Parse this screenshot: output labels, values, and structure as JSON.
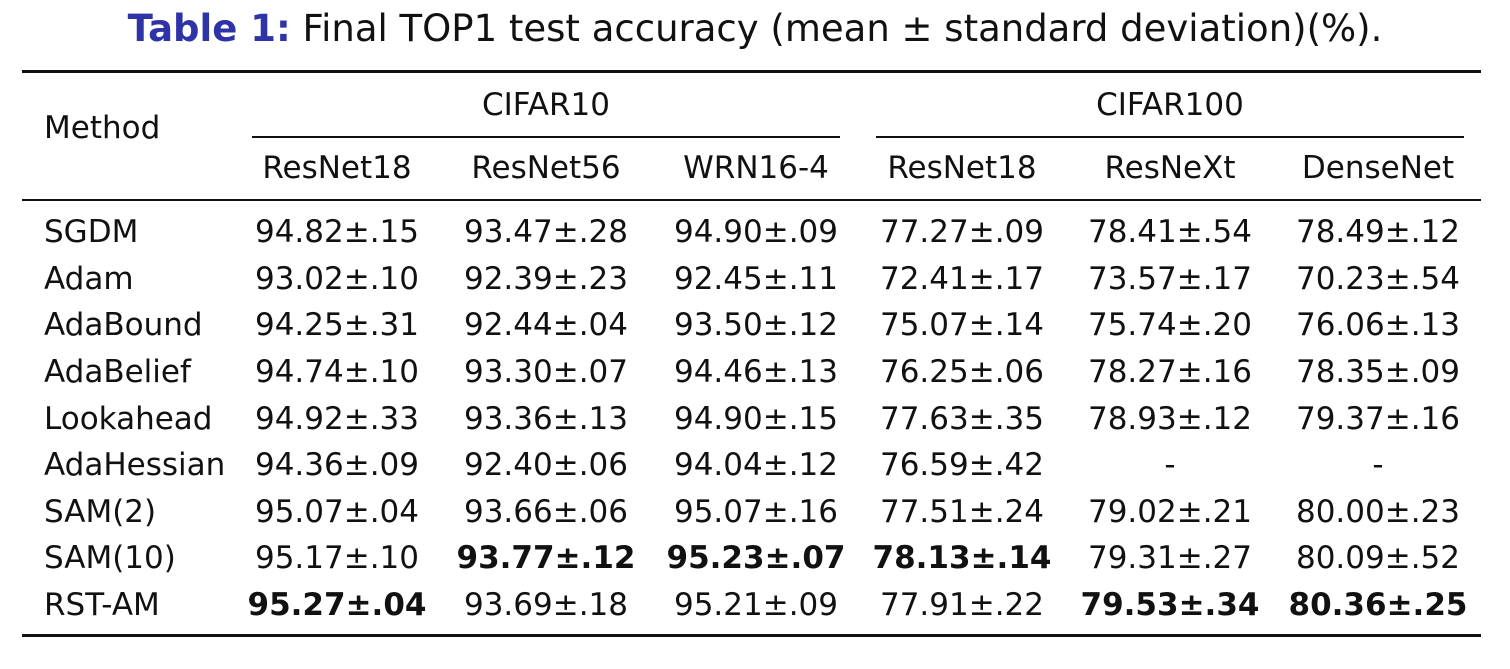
{
  "caption": {
    "label": "Table 1:",
    "text": "Final TOP1 test accuracy (mean ± standard deviation)(%)."
  },
  "table": {
    "method_header": "Method",
    "groups": [
      {
        "name": "CIFAR10",
        "columns": [
          "ResNet18",
          "ResNet56",
          "WRN16-4"
        ]
      },
      {
        "name": "CIFAR100",
        "columns": [
          "ResNet18",
          "ResNeXt",
          "DenseNet"
        ]
      }
    ],
    "rows": [
      {
        "method": "SGDM",
        "values": [
          "94.82±.15",
          "93.47±.28",
          "94.90±.09",
          "77.27±.09",
          "78.41±.54",
          "78.49±.12"
        ],
        "bold": [
          false,
          false,
          false,
          false,
          false,
          false
        ]
      },
      {
        "method": "Adam",
        "values": [
          "93.02±.10",
          "92.39±.23",
          "92.45±.11",
          "72.41±.17",
          "73.57±.17",
          "70.23±.54"
        ],
        "bold": [
          false,
          false,
          false,
          false,
          false,
          false
        ]
      },
      {
        "method": "AdaBound",
        "values": [
          "94.25±.31",
          "92.44±.04",
          "93.50±.12",
          "75.07±.14",
          "75.74±.20",
          "76.06±.13"
        ],
        "bold": [
          false,
          false,
          false,
          false,
          false,
          false
        ]
      },
      {
        "method": "AdaBelief",
        "values": [
          "94.74±.10",
          "93.30±.07",
          "94.46±.13",
          "76.25±.06",
          "78.27±.16",
          "78.35±.09"
        ],
        "bold": [
          false,
          false,
          false,
          false,
          false,
          false
        ]
      },
      {
        "method": "Lookahead",
        "values": [
          "94.92±.33",
          "93.36±.13",
          "94.90±.15",
          "77.63±.35",
          "78.93±.12",
          "79.37±.16"
        ],
        "bold": [
          false,
          false,
          false,
          false,
          false,
          false
        ]
      },
      {
        "method": "AdaHessian",
        "values": [
          "94.36±.09",
          "92.40±.06",
          "94.04±.12",
          "76.59±.42",
          "-",
          "-"
        ],
        "bold": [
          false,
          false,
          false,
          false,
          false,
          false
        ]
      },
      {
        "method": "SAM(2)",
        "values": [
          "95.07±.04",
          "93.66±.06",
          "95.07±.16",
          "77.51±.24",
          "79.02±.21",
          "80.00±.23"
        ],
        "bold": [
          false,
          false,
          false,
          false,
          false,
          false
        ]
      },
      {
        "method": "SAM(10)",
        "values": [
          "95.17±.10",
          "93.77±.12",
          "95.23±.07",
          "78.13±.14",
          "79.31±.27",
          "80.09±.52"
        ],
        "bold": [
          false,
          true,
          true,
          true,
          false,
          false
        ]
      },
      {
        "method": "RST-AM",
        "values": [
          "95.27±.04",
          "93.69±.18",
          "95.21±.09",
          "77.91±.22",
          "79.53±.34",
          "80.36±.25"
        ],
        "bold": [
          true,
          false,
          false,
          false,
          true,
          true
        ]
      }
    ]
  }
}
